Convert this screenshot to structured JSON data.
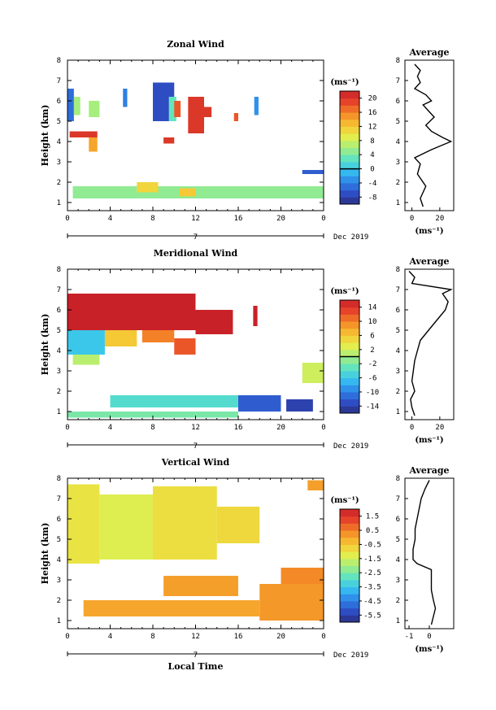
{
  "date_label": "Dec 2019",
  "day_label": "7",
  "xlabel_bottom": "Local Time",
  "chart_data": [
    {
      "type": "heatmap",
      "title": "Zonal Wind",
      "ylabel": "Height (km)",
      "xlabel": "Local Time",
      "xlim": [
        0,
        24
      ],
      "ylim": [
        0.6,
        8
      ],
      "xticks": [
        0,
        4,
        8,
        12,
        16,
        20
      ],
      "yticks": [
        1,
        2,
        3,
        4,
        5,
        6,
        7,
        8
      ],
      "colorbar": {
        "unit": "(ms⁻¹)",
        "ticks": [
          -8,
          -4,
          0,
          4,
          8,
          12,
          16,
          20
        ],
        "min": -10,
        "max": 22,
        "zero_line": 0
      },
      "regions": [
        {
          "x0": 0.0,
          "x1": 0.6,
          "y0": 5.0,
          "y1": 6.6,
          "v": -5
        },
        {
          "x0": 0.6,
          "x1": 1.2,
          "y0": 5.3,
          "y1": 6.2,
          "v": 6
        },
        {
          "x0": 2.0,
          "x1": 3.0,
          "y0": 5.2,
          "y1": 6.0,
          "v": 6
        },
        {
          "x0": 5.2,
          "x1": 5.6,
          "y0": 5.7,
          "y1": 6.6,
          "v": -4
        },
        {
          "x0": 8.0,
          "x1": 10.0,
          "y0": 5.0,
          "y1": 6.9,
          "v": -7
        },
        {
          "x0": 9.5,
          "x1": 10.2,
          "y0": 5.0,
          "y1": 6.2,
          "v": 3
        },
        {
          "x0": 10.0,
          "x1": 10.6,
          "y0": 5.2,
          "y1": 6.0,
          "v": 18
        },
        {
          "x0": 11.3,
          "x1": 12.8,
          "y0": 4.4,
          "y1": 6.2,
          "v": 20
        },
        {
          "x0": 12.8,
          "x1": 13.5,
          "y0": 5.2,
          "y1": 5.7,
          "v": 20
        },
        {
          "x0": 15.6,
          "x1": 16.0,
          "y0": 5.0,
          "y1": 5.4,
          "v": 18
        },
        {
          "x0": 17.5,
          "x1": 17.9,
          "y0": 5.3,
          "y1": 6.2,
          "v": -3
        },
        {
          "x0": 0.2,
          "x1": 2.8,
          "y0": 4.2,
          "y1": 4.5,
          "v": 20
        },
        {
          "x0": 2.0,
          "x1": 2.8,
          "y0": 3.5,
          "y1": 4.2,
          "v": 14
        },
        {
          "x0": 9.0,
          "x1": 10.0,
          "y0": 3.9,
          "y1": 4.2,
          "v": 20
        },
        {
          "x0": 22.0,
          "x1": 24.0,
          "y0": 2.4,
          "y1": 2.6,
          "v": -6
        },
        {
          "x0": 0.5,
          "x1": 24.0,
          "y0": 1.2,
          "y1": 1.8,
          "v": 5
        },
        {
          "x0": 6.5,
          "x1": 8.5,
          "y0": 1.5,
          "y1": 2.0,
          "v": 11
        },
        {
          "x0": 10.5,
          "x1": 12.0,
          "y0": 1.3,
          "y1": 1.7,
          "v": 12
        }
      ],
      "profile": {
        "title": "Average",
        "xlim": [
          -5,
          30
        ],
        "xticks": [
          0,
          20
        ],
        "unit": "(ms⁻¹)",
        "heights": [
          0.8,
          1.2,
          1.8,
          2.4,
          2.9,
          3.2,
          3.6,
          4.0,
          4.2,
          4.5,
          4.8,
          5.2,
          5.5,
          5.8,
          6.0,
          6.3,
          6.6,
          6.9,
          7.2,
          7.5,
          7.8
        ],
        "values": [
          8,
          6,
          10,
          4,
          6,
          2,
          14,
          28,
          22,
          14,
          10,
          16,
          12,
          8,
          14,
          10,
          2,
          6,
          4,
          6,
          2
        ]
      }
    },
    {
      "type": "heatmap",
      "title": "Meridional Wind",
      "ylabel": "Height (km)",
      "xlabel": "Local Time",
      "xlim": [
        0,
        24
      ],
      "ylim": [
        0.6,
        8
      ],
      "xticks": [
        0,
        4,
        8,
        12,
        16,
        20
      ],
      "yticks": [
        1,
        2,
        3,
        4,
        5,
        6,
        7,
        8
      ],
      "colorbar": {
        "unit": "(ms⁻¹)",
        "ticks": [
          -14,
          -10,
          -6,
          -2,
          2,
          6,
          10,
          14
        ],
        "min": -16,
        "max": 16,
        "zero_line": 0
      },
      "regions": [
        {
          "x0": 0.0,
          "x1": 12.0,
          "y0": 5.0,
          "y1": 6.8,
          "v": 16
        },
        {
          "x0": 12.0,
          "x1": 15.5,
          "y0": 4.8,
          "y1": 6.0,
          "v": 16
        },
        {
          "x0": 17.4,
          "x1": 17.8,
          "y0": 5.2,
          "y1": 6.2,
          "v": 16
        },
        {
          "x0": 0.0,
          "x1": 3.5,
          "y0": 3.8,
          "y1": 5.0,
          "v": -6
        },
        {
          "x0": 3.5,
          "x1": 6.5,
          "y0": 4.2,
          "y1": 5.0,
          "v": 6
        },
        {
          "x0": 7.0,
          "x1": 10.0,
          "y0": 4.4,
          "y1": 5.0,
          "v": 10
        },
        {
          "x0": 10.0,
          "x1": 12.0,
          "y0": 3.8,
          "y1": 4.6,
          "v": 12
        },
        {
          "x0": 0.5,
          "x1": 3.0,
          "y0": 3.3,
          "y1": 3.8,
          "v": 1
        },
        {
          "x0": 22.0,
          "x1": 24.0,
          "y0": 2.4,
          "y1": 3.4,
          "v": 2
        },
        {
          "x0": 4.0,
          "x1": 16.0,
          "y0": 1.2,
          "y1": 1.8,
          "v": -4
        },
        {
          "x0": 16.0,
          "x1": 20.0,
          "y0": 1.0,
          "y1": 1.8,
          "v": -12
        },
        {
          "x0": 20.5,
          "x1": 23.0,
          "y0": 1.0,
          "y1": 1.6,
          "v": -14
        },
        {
          "x0": 0.0,
          "x1": 16.0,
          "y0": 0.7,
          "y1": 1.0,
          "v": -2
        }
      ],
      "profile": {
        "title": "Average",
        "xlim": [
          -5,
          30
        ],
        "xticks": [
          0,
          20
        ],
        "unit": "(ms⁻¹)",
        "heights": [
          0.8,
          1.2,
          1.6,
          2.0,
          2.5,
          3.0,
          3.5,
          4.0,
          4.5,
          5.0,
          5.5,
          6.0,
          6.4,
          6.8,
          7.0,
          7.3,
          7.6,
          7.9
        ],
        "values": [
          2,
          0,
          -1,
          2,
          0,
          1,
          2,
          4,
          6,
          12,
          18,
          24,
          26,
          22,
          28,
          0,
          2,
          -2
        ]
      }
    },
    {
      "type": "heatmap",
      "title": "Vertical Wind",
      "ylabel": "Height (km)",
      "xlabel": "Local Time",
      "xlim": [
        0,
        24
      ],
      "ylim": [
        0.6,
        8
      ],
      "xticks": [
        0,
        4,
        8,
        12,
        16,
        20
      ],
      "yticks": [
        1,
        2,
        3,
        4,
        5,
        6,
        7,
        8
      ],
      "colorbar": {
        "unit": "(ms⁻¹)",
        "ticks": [
          -5.5,
          -4.5,
          -3.5,
          -2.5,
          -1.5,
          -0.5,
          0.5,
          1.5
        ],
        "min": -6,
        "max": 2,
        "zero_line": null
      },
      "regions": [
        {
          "x0": 0.0,
          "x1": 3.0,
          "y0": 3.8,
          "y1": 7.7,
          "v": -1.0
        },
        {
          "x0": 3.0,
          "x1": 8.0,
          "y0": 4.0,
          "y1": 7.2,
          "v": -1.3
        },
        {
          "x0": 8.0,
          "x1": 14.0,
          "y0": 4.0,
          "y1": 7.6,
          "v": -0.9
        },
        {
          "x0": 14.0,
          "x1": 18.0,
          "y0": 4.8,
          "y1": 6.6,
          "v": -0.8
        },
        {
          "x0": 20.0,
          "x1": 24.0,
          "y0": 2.8,
          "y1": 3.6,
          "v": 0.4
        },
        {
          "x0": 18.0,
          "x1": 24.0,
          "y0": 1.0,
          "y1": 2.8,
          "v": 0.2
        },
        {
          "x0": 1.5,
          "x1": 18.0,
          "y0": 1.2,
          "y1": 2.0,
          "v": 0.0
        },
        {
          "x0": 9.0,
          "x1": 16.0,
          "y0": 2.2,
          "y1": 3.2,
          "v": 0.1
        },
        {
          "x0": 22.5,
          "x1": 24.0,
          "y0": 7.4,
          "y1": 7.9,
          "v": 0.1
        }
      ],
      "profile": {
        "title": "Average",
        "xlim": [
          -1.2,
          1.2
        ],
        "xticks": [
          -1,
          0
        ],
        "unit": "(ms⁻¹)",
        "heights": [
          0.8,
          1.2,
          1.6,
          2.0,
          2.5,
          3.0,
          3.5,
          3.8,
          4.0,
          4.5,
          5.0,
          5.5,
          6.0,
          6.5,
          7.0,
          7.5,
          7.9
        ],
        "values": [
          0.1,
          0.2,
          0.3,
          0.2,
          0.1,
          0.1,
          0.1,
          -0.6,
          -0.8,
          -0.8,
          -0.7,
          -0.7,
          -0.6,
          -0.5,
          -0.4,
          -0.2,
          0.0
        ]
      }
    }
  ]
}
